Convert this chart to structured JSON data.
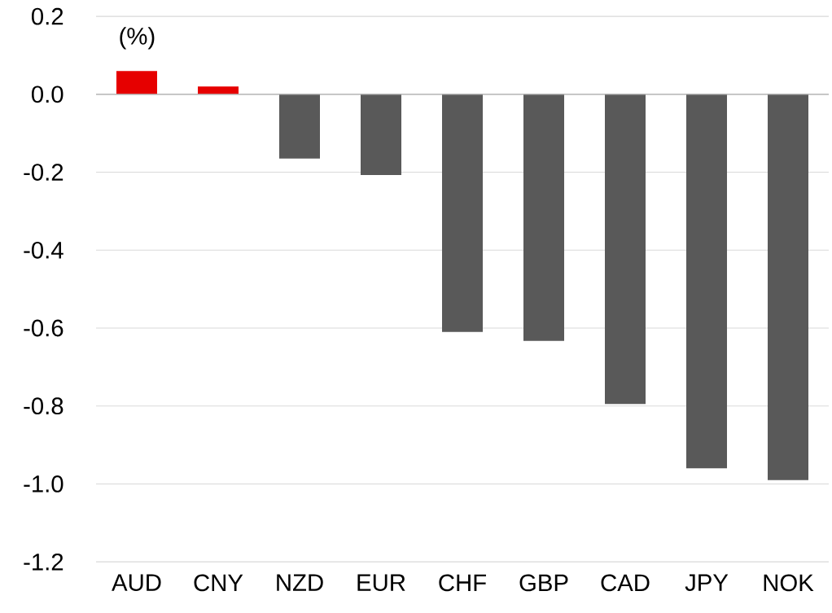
{
  "chart_data": {
    "type": "bar",
    "ylabel": "(%)",
    "categories": [
      "AUD",
      "CNY",
      "NZD",
      "EUR",
      "CHF",
      "GBP",
      "CAD",
      "JPY",
      "NOK"
    ],
    "values": [
      0.06,
      0.02,
      -0.165,
      -0.207,
      -0.61,
      -0.633,
      -0.795,
      -0.96,
      -0.99
    ],
    "colors": [
      "#e60000",
      "#e60000",
      "#595959",
      "#595959",
      "#595959",
      "#595959",
      "#595959",
      "#595959",
      "#595959"
    ],
    "ylim": [
      -1.2,
      0.2
    ],
    "yticks": [
      {
        "value": -1.2,
        "label": "-1.2"
      },
      {
        "value": -1.0,
        "label": "-1.0"
      },
      {
        "value": -0.8,
        "label": "-0.8"
      },
      {
        "value": -0.6,
        "label": "-0.6"
      },
      {
        "value": -0.4,
        "label": "-0.4"
      },
      {
        "value": -0.2,
        "label": "-0.2"
      },
      {
        "value": 0.0,
        "label": "0.0"
      },
      {
        "value": 0.2,
        "label": "0.2"
      }
    ],
    "grid": "y"
  }
}
